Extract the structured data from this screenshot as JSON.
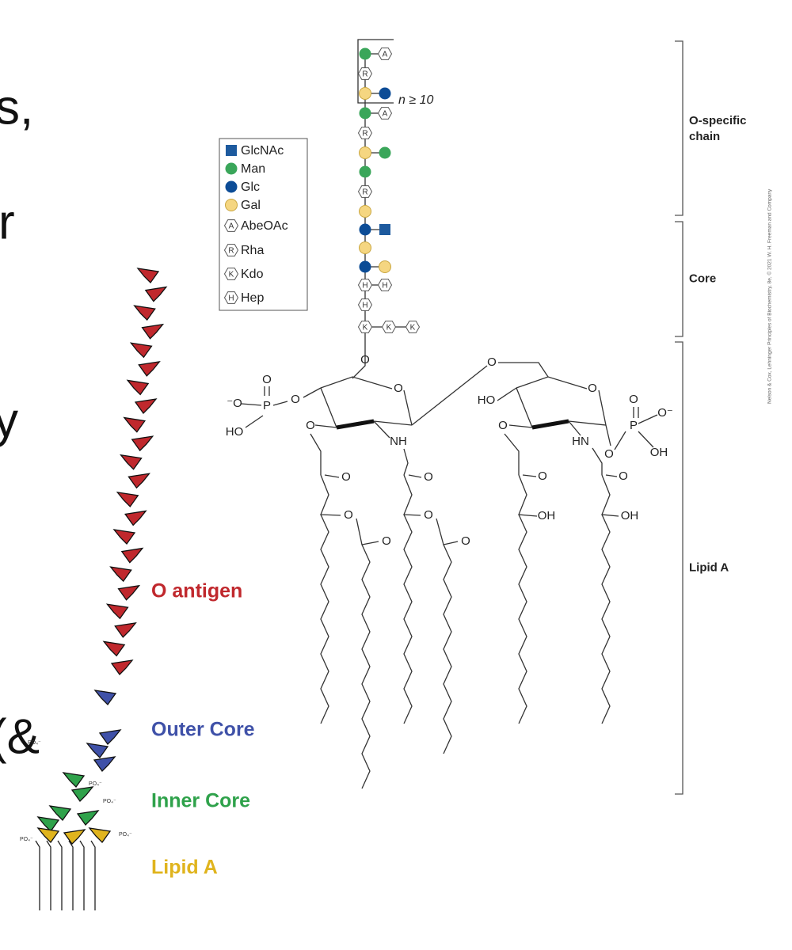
{
  "slide_fragments": [
    "s,",
    "r",
    "y",
    "(&"
  ],
  "legend": [
    {
      "label": "GlcNAc"
    },
    {
      "label": "Man"
    },
    {
      "label": "Glc"
    },
    {
      "label": "Gal"
    },
    {
      "letter": "A",
      "label": "AbeOAc"
    },
    {
      "letter": "R",
      "label": "Rha"
    },
    {
      "letter": "K",
      "label": "Kdo"
    },
    {
      "letter": "H",
      "label": "Hep"
    }
  ],
  "repeat_label": "n ≥ 10",
  "chem_labels": [
    "O",
    "O",
    "⁻O",
    "P",
    "O",
    "HO",
    "O",
    "O",
    "O",
    "NH",
    "HO",
    "O",
    "O",
    "HN",
    "O",
    "P",
    "O",
    "O⁻",
    "OH",
    "O",
    "O",
    "O",
    "O",
    "O",
    "O",
    "O",
    "O",
    "OH",
    "OH"
  ],
  "brackets": [
    {
      "lines": [
        "O-specific",
        "chain"
      ]
    },
    {
      "lines": [
        "Core"
      ]
    },
    {
      "lines": [
        "Lipid A"
      ]
    }
  ],
  "cartoon_labels": [
    "O antigen",
    "Outer Core",
    "Inner Core",
    "Lipid A"
  ],
  "phosphate_label": "PO₄⁻",
  "credit": "Nelson & Cox, Lehninger Principles of Biochemistry, 8e, © 2021 W. H. Freeman and Company"
}
